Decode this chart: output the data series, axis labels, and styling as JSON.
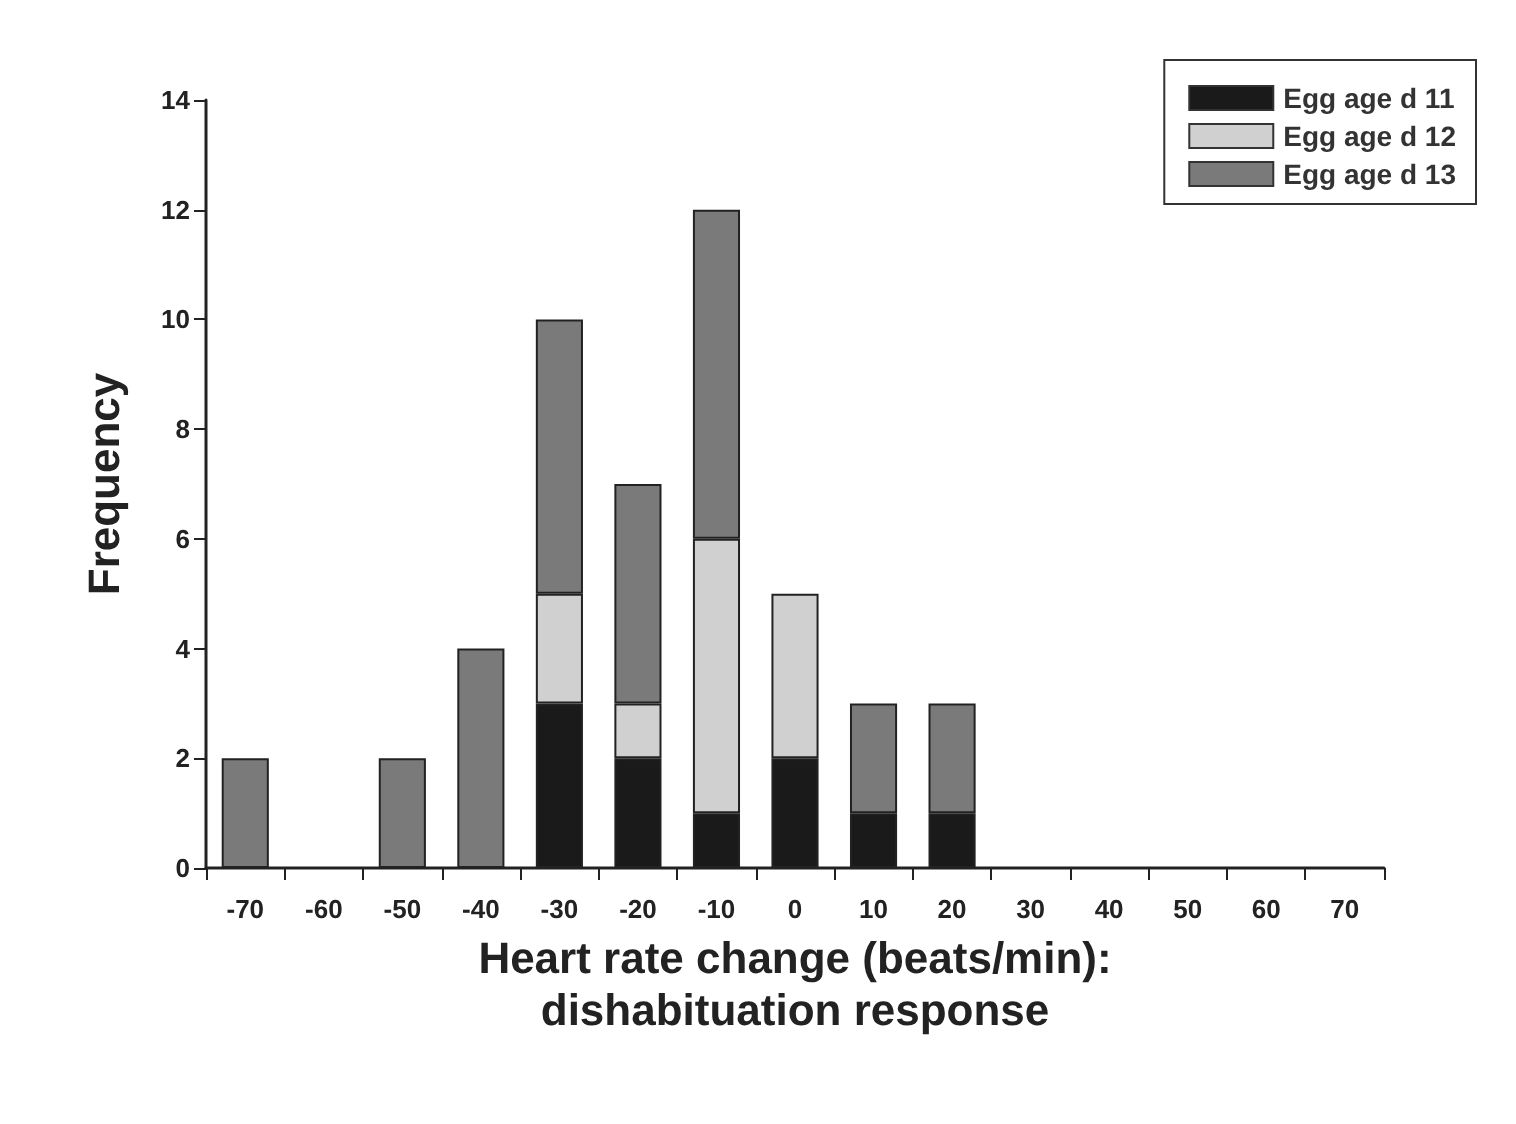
{
  "chart_data": {
    "type": "bar",
    "stacked": true,
    "xlabel": "Heart rate change (beats/min):\ndishabituation response",
    "ylabel": "Frequency",
    "categories": [
      "-70",
      "-60",
      "-50",
      "-40",
      "-30",
      "-20",
      "-10",
      "0",
      "10",
      "20",
      "30",
      "40",
      "50",
      "60",
      "70"
    ],
    "series": [
      {
        "name": "Egg age d 11",
        "color": "#1a1a1a",
        "values": [
          0,
          0,
          0,
          0,
          3,
          2,
          1,
          2,
          1,
          1,
          0,
          0,
          0,
          0,
          0
        ]
      },
      {
        "name": "Egg age d 12",
        "color": "#d0d0d0",
        "values": [
          0,
          0,
          0,
          0,
          2,
          1,
          5,
          3,
          0,
          0,
          0,
          0,
          0,
          0,
          0
        ]
      },
      {
        "name": "Egg age d 13",
        "color": "#7a7a7a",
        "values": [
          2,
          0,
          2,
          4,
          5,
          4,
          6,
          0,
          2,
          2,
          0,
          0,
          0,
          0,
          0
        ]
      }
    ],
    "ylim": [
      0,
      14
    ],
    "yticks": [
      0,
      2,
      4,
      6,
      8,
      10,
      12,
      14
    ],
    "grid": false,
    "legend": "top right"
  }
}
